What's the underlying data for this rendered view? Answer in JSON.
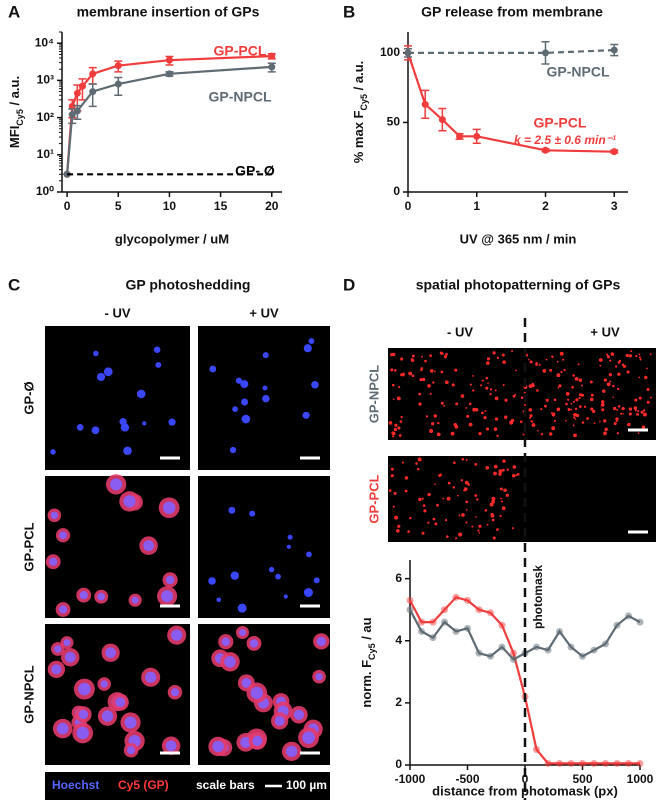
{
  "panel_letters": [
    "A",
    "B",
    "C",
    "D"
  ],
  "chart_data": [
    {
      "type": "line",
      "title": "membrane insertion of GPs",
      "xlabel": "glycopolymer / uM",
      "ylabel": [
        "MFI",
        "Cy5",
        " / a.u."
      ],
      "log_y": true,
      "xlim": [
        -0.5,
        21
      ],
      "ylim": [
        1,
        20000
      ],
      "xticks": [
        0,
        5,
        10,
        15,
        20
      ],
      "yticks": [
        {
          "value": 1,
          "label": "10⁰"
        },
        {
          "value": 10,
          "label": "10¹"
        },
        {
          "value": 100,
          "label": "10²"
        },
        {
          "value": 1000,
          "label": "10³"
        },
        {
          "value": 10000,
          "label": "10⁴"
        }
      ],
      "series": [
        {
          "name": "GP-PCL",
          "color": "#f03c3c",
          "x": [
            0,
            0.5,
            1,
            1.5,
            2.5,
            5,
            10,
            20
          ],
          "values": [
            3,
            200,
            450,
            700,
            1500,
            2500,
            3500,
            4500
          ],
          "errors": [
            0,
            100,
            300,
            400,
            700,
            800,
            900,
            700
          ]
        },
        {
          "name": "GP-NPCL",
          "color": "#5f6b73",
          "x": [
            0,
            0.5,
            1,
            2.5,
            5,
            10,
            20
          ],
          "values": [
            3,
            120,
            150,
            500,
            800,
            1500,
            2300
          ],
          "errors": [
            0,
            50,
            60,
            300,
            400,
            200,
            600
          ]
        },
        {
          "name": "GP- Ø",
          "color": "#000000",
          "dashed": true,
          "markers": false,
          "x": [
            0,
            20
          ],
          "values": [
            3,
            3
          ]
        }
      ]
    },
    {
      "type": "line",
      "title": "GP release from membrane",
      "xlabel": "UV @ 365 nm / min",
      "ylabel": [
        "% max F",
        "Cy5",
        " / a.u."
      ],
      "xlim": [
        0,
        3.2
      ],
      "ylim": [
        0,
        115
      ],
      "xticks": [
        0,
        1,
        2,
        3
      ],
      "yticks": [
        0,
        50,
        100
      ],
      "annotation": "k = 2.5 ± 0.6 min⁻¹",
      "series": [
        {
          "name": "GP-PCL",
          "color": "#f03c3c",
          "x": [
            0,
            0.25,
            0.5,
            0.75,
            1,
            2,
            3
          ],
          "values": [
            100,
            63,
            52,
            40,
            40,
            30,
            29
          ],
          "errors": [
            5,
            10,
            8,
            2,
            5,
            1,
            1
          ]
        },
        {
          "name": "GP-NPCL",
          "color": "#5f6b73",
          "dashed": true,
          "x": [
            0,
            2,
            3
          ],
          "values": [
            100,
            100,
            102
          ],
          "errors": [
            3,
            8,
            4
          ]
        }
      ]
    },
    {
      "type": "line",
      "xlabel": "distance from photomask (px)",
      "ylabel": [
        "norm. F",
        "Cy5",
        " / au"
      ],
      "xlim": [
        -1000,
        1000
      ],
      "ylim": [
        0,
        6.6
      ],
      "xticks": [
        -1000,
        -500,
        0,
        500,
        1000
      ],
      "yticks": [
        0,
        2,
        4,
        6
      ],
      "annotation": "photomask",
      "marker_opacity": 0.5,
      "series": [
        {
          "color": "#f03c3c",
          "x": [
            -1000,
            -900,
            -800,
            -700,
            -600,
            -500,
            -400,
            -300,
            -200,
            -100,
            0,
            100,
            200,
            300,
            400,
            500,
            600,
            700,
            800,
            900,
            1000
          ],
          "values": [
            5.3,
            4.6,
            4.6,
            5.0,
            5.4,
            5.3,
            5.0,
            4.9,
            4.5,
            3.6,
            2.2,
            0.5,
            0.05,
            0.05,
            0.05,
            0.05,
            0.05,
            0.05,
            0.05,
            0.05,
            0.05
          ]
        },
        {
          "color": "#5f6b73",
          "x": [
            -1000,
            -900,
            -800,
            -700,
            -600,
            -500,
            -400,
            -300,
            -200,
            -100,
            0,
            100,
            200,
            300,
            400,
            500,
            600,
            700,
            800,
            900,
            1000
          ],
          "values": [
            5.0,
            4.3,
            4.1,
            4.6,
            4.3,
            4.4,
            3.6,
            3.5,
            3.8,
            3.4,
            3.6,
            3.8,
            3.7,
            4.3,
            3.8,
            3.5,
            3.7,
            3.9,
            4.5,
            4.8,
            4.6
          ]
        }
      ]
    }
  ],
  "panel_c": {
    "title": "GP photoshedding",
    "columns": [
      "- UV",
      "+ UV"
    ],
    "rows": [
      "GP-Ø",
      "GP-PCL",
      "GP-NPCL"
    ],
    "legend": {
      "stains": [
        "Hoechst",
        "Cy5 (GP)"
      ],
      "scale_label": "scale bars",
      "scale_value": "100 µm"
    }
  },
  "panel_d": {
    "title": "spatial photopatterning of GPs",
    "columns": [
      "- UV",
      "+ UV"
    ],
    "rows": [
      "GP-NPCL",
      "GP-PCL"
    ]
  }
}
